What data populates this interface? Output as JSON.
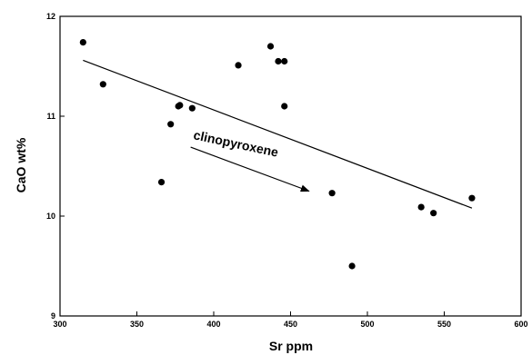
{
  "chart_data": {
    "type": "scatter",
    "title": "",
    "xlabel": "Sr ppm",
    "ylabel": "CaO wt%",
    "xlim": [
      300,
      600
    ],
    "ylim": [
      9,
      12
    ],
    "xticks": [
      300,
      350,
      400,
      450,
      500,
      550,
      600
    ],
    "yticks": [
      9,
      10,
      11,
      12
    ],
    "grid": false,
    "series": [
      {
        "points": [
          {
            "x": 315,
            "y": 11.74
          },
          {
            "x": 328,
            "y": 11.32
          },
          {
            "x": 366,
            "y": 10.34
          },
          {
            "x": 372,
            "y": 10.92
          },
          {
            "x": 377,
            "y": 11.1
          },
          {
            "x": 378,
            "y": 11.11
          },
          {
            "x": 386,
            "y": 11.08
          },
          {
            "x": 416,
            "y": 11.51
          },
          {
            "x": 437,
            "y": 11.7
          },
          {
            "x": 442,
            "y": 11.55
          },
          {
            "x": 446,
            "y": 11.55
          },
          {
            "x": 446,
            "y": 11.1
          },
          {
            "x": 477,
            "y": 10.23
          },
          {
            "x": 490,
            "y": 9.5
          },
          {
            "x": 535,
            "y": 10.09
          },
          {
            "x": 543,
            "y": 10.03
          },
          {
            "x": 568,
            "y": 10.18
          }
        ]
      }
    ],
    "trendline": {
      "x1": 315,
      "y1": 11.56,
      "x2": 568,
      "y2": 10.08
    },
    "annotation": {
      "text": "clinopyroxene",
      "arrow": {
        "from": {
          "x": 385,
          "y": 10.69
        },
        "to": {
          "x": 462,
          "y": 10.25
        }
      }
    }
  }
}
